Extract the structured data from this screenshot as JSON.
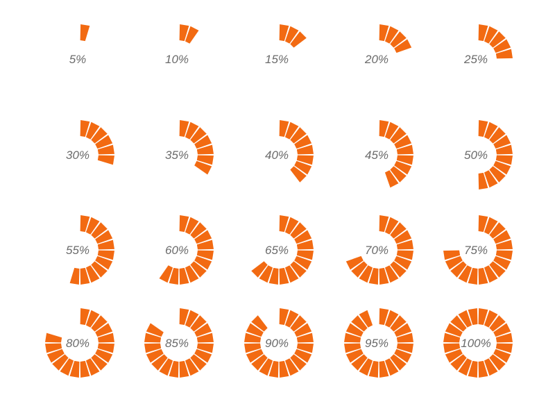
{
  "colors": {
    "segment": "#f26a12",
    "label": "#6b6b6b",
    "background": "#ffffff"
  },
  "grid": {
    "rows": 4,
    "columns": 5,
    "segments_per_ring": 20
  },
  "indicators": [
    {
      "value": 5,
      "label": "5%"
    },
    {
      "value": 10,
      "label": "10%"
    },
    {
      "value": 15,
      "label": "15%"
    },
    {
      "value": 20,
      "label": "20%"
    },
    {
      "value": 25,
      "label": "25%"
    },
    {
      "value": 30,
      "label": "30%"
    },
    {
      "value": 35,
      "label": "35%"
    },
    {
      "value": 40,
      "label": "40%"
    },
    {
      "value": 45,
      "label": "45%"
    },
    {
      "value": 50,
      "label": "50%"
    },
    {
      "value": 55,
      "label": "55%"
    },
    {
      "value": 60,
      "label": "60%"
    },
    {
      "value": 65,
      "label": "65%"
    },
    {
      "value": 70,
      "label": "70%"
    },
    {
      "value": 75,
      "label": "75%"
    },
    {
      "value": 80,
      "label": "80%"
    },
    {
      "value": 85,
      "label": "85%"
    },
    {
      "value": 90,
      "label": "90%"
    },
    {
      "value": 95,
      "label": "95%"
    },
    {
      "value": 100,
      "label": "100%"
    }
  ]
}
